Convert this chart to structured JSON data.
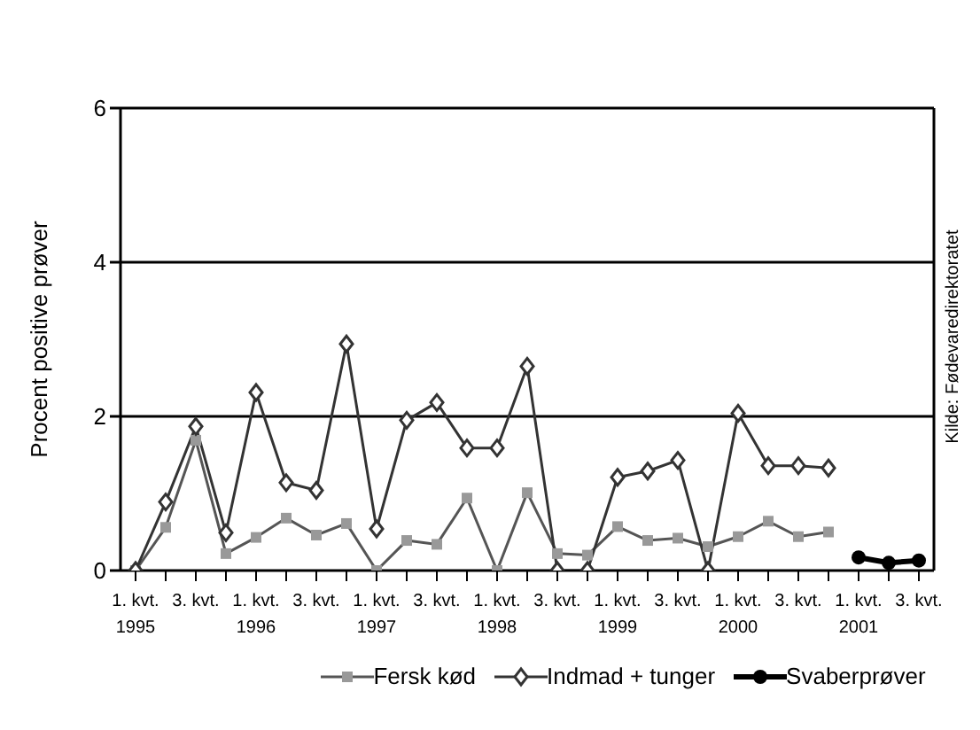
{
  "chart_data": {
    "type": "line",
    "ylabel": "Procent positive prøver",
    "categories": [
      "1. kvt.\n1995",
      null,
      "3. kvt.",
      null,
      "1. kvt.\n1996",
      null,
      "3. kvt.",
      null,
      "1. kvt.\n1997",
      null,
      "3. kvt.",
      null,
      "1. kvt.\n1998",
      null,
      "3. kvt.",
      null,
      "1. kvt.\n1999",
      null,
      "3. kvt.",
      null,
      "1. kvt.\n2000",
      null,
      "3. kvt.",
      null,
      "1. kvt.\n2001",
      null,
      "3. kvt."
    ],
    "series": [
      {
        "name": "Fersk kød",
        "color": "#555555",
        "marker": "square",
        "values": [
          0,
          0.56,
          1.69,
          0.22,
          0.43,
          0.68,
          0.46,
          0.61,
          0,
          0.39,
          0.34,
          0.94,
          0,
          1.01,
          0.22,
          0.2,
          0.57,
          0.39,
          0.42,
          0.31,
          0.44,
          0.64,
          0.44,
          0.5,
          null,
          null,
          null
        ]
      },
      {
        "name": "Indmad + tunger",
        "color": "#333333",
        "marker": "diamond",
        "values": [
          0,
          0.89,
          1.87,
          0.49,
          2.31,
          1.14,
          1.04,
          2.94,
          0.54,
          1.95,
          2.18,
          1.59,
          1.59,
          2.65,
          0,
          0,
          1.21,
          1.29,
          1.43,
          0,
          2.04,
          1.36,
          1.36,
          1.33,
          null,
          null,
          null
        ]
      },
      {
        "name": "Svaberprøver",
        "color": "#000000",
        "marker": "circle",
        "values": [
          null,
          null,
          null,
          null,
          null,
          null,
          null,
          null,
          null,
          null,
          null,
          null,
          null,
          null,
          null,
          null,
          null,
          null,
          null,
          null,
          null,
          null,
          null,
          null,
          0.17,
          0.1,
          0.13
        ]
      }
    ],
    "ylim": [
      0,
      6
    ],
    "yticks": [
      0,
      2,
      4,
      6
    ],
    "grid": "y",
    "legend": "bottom",
    "annotations": [
      "Kilde: Fødevaredirektoratet"
    ]
  }
}
